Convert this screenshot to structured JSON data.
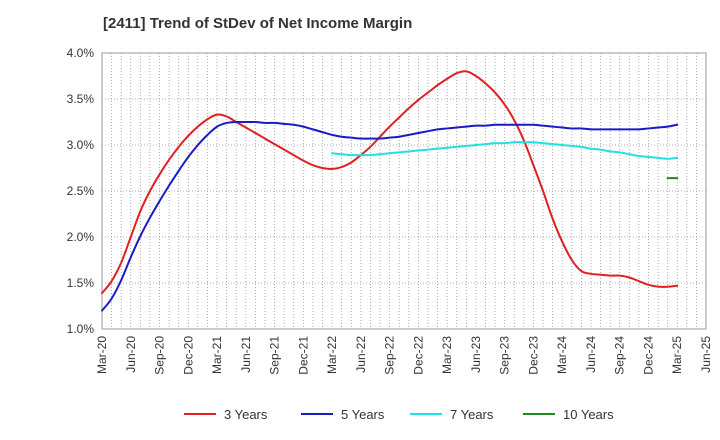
{
  "chart_data": {
    "type": "line",
    "title": "[2411]  Trend of StDev of Net Income Margin",
    "xlabel": "",
    "ylabel": "",
    "x_ticks": [
      "Mar-20",
      "Jun-20",
      "Sep-20",
      "Dec-20",
      "Mar-21",
      "Jun-21",
      "Sep-21",
      "Dec-21",
      "Mar-22",
      "Jun-22",
      "Sep-22",
      "Dec-22",
      "Mar-23",
      "Jun-23",
      "Sep-23",
      "Dec-23",
      "Mar-24",
      "Jun-24",
      "Sep-24",
      "Dec-24",
      "Mar-25",
      "Jun-25"
    ],
    "y_ticks": [
      "1.0%",
      "1.5%",
      "2.0%",
      "2.5%",
      "3.0%",
      "3.5%",
      "4.0%"
    ],
    "ylim": [
      1.0,
      4.0
    ],
    "grid": true,
    "legend_position": "bottom",
    "series": [
      {
        "name": "3 Years",
        "color": "#e02020",
        "x": [
          "Mar-20",
          "Apr-20",
          "May-20",
          "Jun-20",
          "Jul-20",
          "Aug-20",
          "Sep-20",
          "Oct-20",
          "Nov-20",
          "Dec-20",
          "Jan-21",
          "Feb-21",
          "Mar-21",
          "Apr-21",
          "May-21",
          "Jun-21",
          "Jul-21",
          "Aug-21",
          "Sep-21",
          "Oct-21",
          "Nov-21",
          "Dec-21",
          "Jan-22",
          "Feb-22",
          "Mar-22",
          "Apr-22",
          "May-22",
          "Jun-22",
          "Jul-22",
          "Aug-22",
          "Sep-22",
          "Oct-22",
          "Nov-22",
          "Dec-22",
          "Jan-23",
          "Feb-23",
          "Mar-23",
          "Apr-23",
          "May-23",
          "Jun-23",
          "Jul-23",
          "Aug-23",
          "Sep-23",
          "Oct-23",
          "Nov-23",
          "Dec-23",
          "Jan-24",
          "Feb-24",
          "Mar-24",
          "Apr-24",
          "May-24",
          "Jun-24",
          "Jul-24",
          "Aug-24",
          "Sep-24",
          "Oct-24",
          "Nov-24",
          "Dec-24",
          "Jan-25",
          "Feb-25",
          "Mar-25"
        ],
        "values": [
          1.39,
          1.52,
          1.72,
          2.0,
          2.28,
          2.5,
          2.68,
          2.84,
          2.98,
          3.1,
          3.2,
          3.28,
          3.33,
          3.31,
          3.25,
          3.19,
          3.13,
          3.07,
          3.01,
          2.95,
          2.89,
          2.83,
          2.78,
          2.75,
          2.74,
          2.76,
          2.81,
          2.89,
          2.98,
          3.09,
          3.2,
          3.3,
          3.4,
          3.49,
          3.57,
          3.65,
          3.72,
          3.78,
          3.8,
          3.75,
          3.67,
          3.57,
          3.44,
          3.27,
          3.05,
          2.78,
          2.5,
          2.2,
          1.95,
          1.75,
          1.63,
          1.6,
          1.59,
          1.58,
          1.58,
          1.56,
          1.52,
          1.48,
          1.46,
          1.46,
          1.47
        ]
      },
      {
        "name": "5 Years",
        "color": "#1a1ac8",
        "x": [
          "Mar-20",
          "Apr-20",
          "May-20",
          "Jun-20",
          "Jul-20",
          "Aug-20",
          "Sep-20",
          "Oct-20",
          "Nov-20",
          "Dec-20",
          "Jan-21",
          "Feb-21",
          "Mar-21",
          "Apr-21",
          "May-21",
          "Jun-21",
          "Jul-21",
          "Aug-21",
          "Sep-21",
          "Oct-21",
          "Nov-21",
          "Dec-21",
          "Jan-22",
          "Feb-22",
          "Mar-22",
          "Apr-22",
          "May-22",
          "Jun-22",
          "Jul-22",
          "Aug-22",
          "Sep-22",
          "Oct-22",
          "Nov-22",
          "Dec-22",
          "Jan-23",
          "Feb-23",
          "Mar-23",
          "Apr-23",
          "May-23",
          "Jun-23",
          "Jul-23",
          "Aug-23",
          "Sep-23",
          "Oct-23",
          "Nov-23",
          "Dec-23",
          "Jan-24",
          "Feb-24",
          "Mar-24",
          "Apr-24",
          "May-24",
          "Jun-24",
          "Jul-24",
          "Aug-24",
          "Sep-24",
          "Oct-24",
          "Nov-24",
          "Dec-24",
          "Jan-25",
          "Feb-25",
          "Mar-25"
        ],
        "values": [
          1.2,
          1.33,
          1.53,
          1.78,
          2.01,
          2.21,
          2.39,
          2.56,
          2.72,
          2.87,
          3.0,
          3.11,
          3.2,
          3.24,
          3.25,
          3.25,
          3.25,
          3.24,
          3.24,
          3.23,
          3.22,
          3.2,
          3.17,
          3.14,
          3.11,
          3.09,
          3.08,
          3.07,
          3.07,
          3.07,
          3.08,
          3.09,
          3.11,
          3.13,
          3.15,
          3.17,
          3.18,
          3.19,
          3.2,
          3.21,
          3.21,
          3.22,
          3.22,
          3.22,
          3.22,
          3.22,
          3.21,
          3.2,
          3.19,
          3.18,
          3.18,
          3.17,
          3.17,
          3.17,
          3.17,
          3.17,
          3.17,
          3.18,
          3.19,
          3.2,
          3.22
        ]
      },
      {
        "name": "7 Years",
        "color": "#22e0e0",
        "x": [
          "Mar-22",
          "Apr-22",
          "May-22",
          "Jun-22",
          "Jul-22",
          "Aug-22",
          "Sep-22",
          "Oct-22",
          "Nov-22",
          "Dec-22",
          "Jan-23",
          "Feb-23",
          "Mar-23",
          "Apr-23",
          "May-23",
          "Jun-23",
          "Jul-23",
          "Aug-23",
          "Sep-23",
          "Oct-23",
          "Nov-23",
          "Dec-23",
          "Jan-24",
          "Feb-24",
          "Mar-24",
          "Apr-24",
          "May-24",
          "Jun-24",
          "Jul-24",
          "Aug-24",
          "Sep-24",
          "Oct-24",
          "Nov-24",
          "Dec-24",
          "Jan-25",
          "Feb-25",
          "Mar-25"
        ],
        "values": [
          2.91,
          2.9,
          2.89,
          2.89,
          2.89,
          2.9,
          2.91,
          2.92,
          2.93,
          2.94,
          2.95,
          2.96,
          2.97,
          2.98,
          2.99,
          3.0,
          3.01,
          3.02,
          3.02,
          3.03,
          3.03,
          3.03,
          3.02,
          3.01,
          3.0,
          2.99,
          2.98,
          2.96,
          2.95,
          2.93,
          2.92,
          2.9,
          2.88,
          2.87,
          2.86,
          2.85,
          2.86
        ]
      },
      {
        "name": "10 Years",
        "color": "#1e8c1e",
        "x": [
          "Feb-25",
          "Mar-25"
        ],
        "values": [
          2.64,
          2.64
        ]
      }
    ]
  }
}
